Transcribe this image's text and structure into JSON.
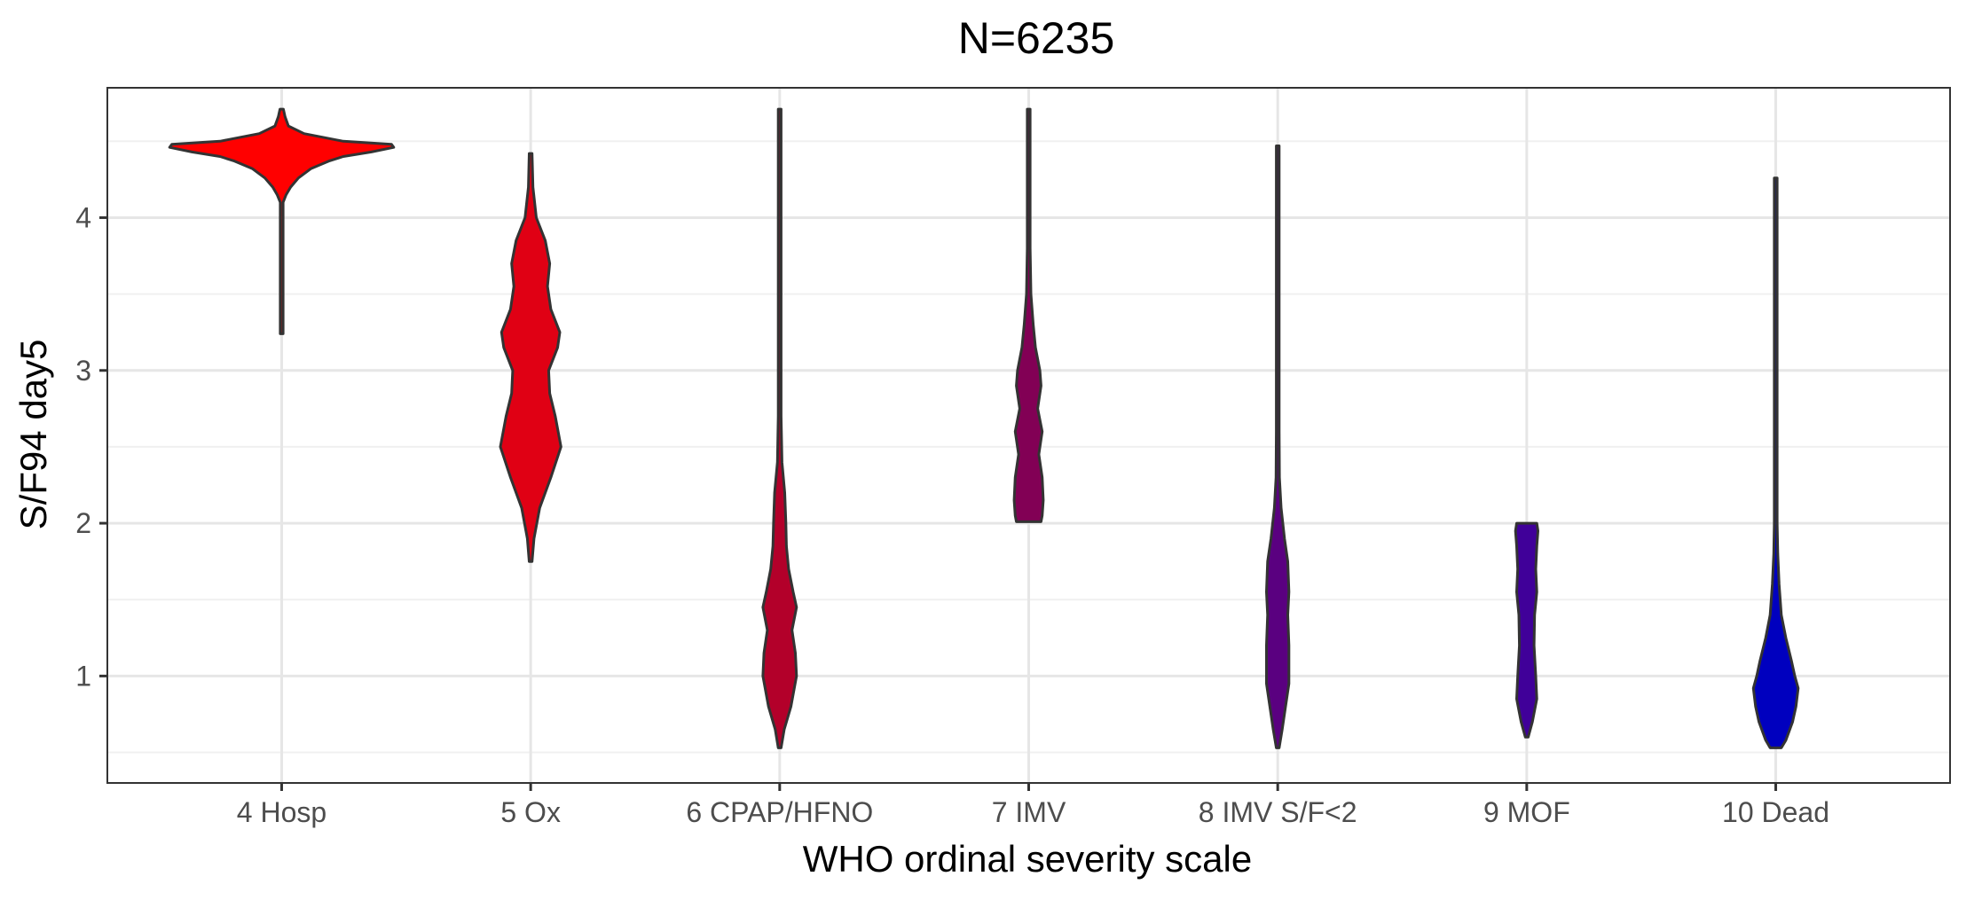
{
  "chart_data": {
    "type": "violin",
    "title": "N=6235",
    "xlabel": "WHO ordinal severity scale",
    "ylabel": "S/F94 day5",
    "ylim": [
      0.3,
      4.85
    ],
    "y_ticks": [
      1,
      2,
      3,
      4
    ],
    "y_tick_labels": [
      "1",
      "2",
      "3",
      "4"
    ],
    "categories": [
      "4 Hosp",
      "5 Ox",
      "6 CPAP/HFNO",
      "7 IMV",
      "8 IMV S/F<2",
      "9 MOF",
      "10 Dead"
    ],
    "grid": true,
    "legend": "none",
    "colors": [
      "#ff0000",
      "#e00014",
      "#b3002a",
      "#820055",
      "#5a0080",
      "#400099",
      "#0000bf"
    ],
    "series": [
      {
        "profile": [
          [
            3.24,
            0.002
          ],
          [
            3.5,
            0.005
          ],
          [
            3.8,
            0.01
          ],
          [
            3.9,
            0.006
          ],
          [
            4.0,
            0.008
          ],
          [
            4.06,
            0.012
          ],
          [
            4.1,
            0.01
          ],
          [
            4.15,
            0.04
          ],
          [
            4.2,
            0.08
          ],
          [
            4.26,
            0.15
          ],
          [
            4.32,
            0.26
          ],
          [
            4.37,
            0.42
          ],
          [
            4.4,
            0.55
          ],
          [
            4.43,
            0.8
          ],
          [
            4.46,
            1.0
          ],
          [
            4.48,
            0.98
          ],
          [
            4.5,
            0.55
          ],
          [
            4.55,
            0.2
          ],
          [
            4.6,
            0.06
          ],
          [
            4.66,
            0.03
          ],
          [
            4.71,
            0.015
          ]
        ]
      },
      {
        "profile": [
          [
            1.75,
            0.01
          ],
          [
            1.9,
            0.03
          ],
          [
            2.1,
            0.08
          ],
          [
            2.3,
            0.18
          ],
          [
            2.5,
            0.27
          ],
          [
            2.7,
            0.22
          ],
          [
            2.85,
            0.17
          ],
          [
            3.0,
            0.16
          ],
          [
            3.15,
            0.24
          ],
          [
            3.25,
            0.26
          ],
          [
            3.4,
            0.18
          ],
          [
            3.55,
            0.15
          ],
          [
            3.7,
            0.17
          ],
          [
            3.85,
            0.13
          ],
          [
            4.0,
            0.05
          ],
          [
            4.2,
            0.02
          ],
          [
            4.42,
            0.01
          ]
        ]
      },
      {
        "profile": [
          [
            0.53,
            0.01
          ],
          [
            0.65,
            0.04
          ],
          [
            0.8,
            0.1
          ],
          [
            1.0,
            0.15
          ],
          [
            1.15,
            0.14
          ],
          [
            1.3,
            0.11
          ],
          [
            1.45,
            0.15
          ],
          [
            1.55,
            0.12
          ],
          [
            1.7,
            0.08
          ],
          [
            1.85,
            0.06
          ],
          [
            2.0,
            0.055
          ],
          [
            2.2,
            0.045
          ],
          [
            2.4,
            0.02
          ],
          [
            2.7,
            0.01
          ],
          [
            3.0,
            0.007
          ],
          [
            3.5,
            0.005
          ],
          [
            4.0,
            0.005
          ],
          [
            4.71,
            0.003
          ]
        ]
      },
      {
        "profile": [
          [
            2.01,
            0.11
          ],
          [
            2.05,
            0.12
          ],
          [
            2.15,
            0.13
          ],
          [
            2.3,
            0.12
          ],
          [
            2.45,
            0.09
          ],
          [
            2.6,
            0.12
          ],
          [
            2.75,
            0.08
          ],
          [
            2.9,
            0.11
          ],
          [
            3.0,
            0.1
          ],
          [
            3.15,
            0.06
          ],
          [
            3.3,
            0.04
          ],
          [
            3.5,
            0.02
          ],
          [
            3.8,
            0.012
          ],
          [
            4.1,
            0.008
          ],
          [
            4.4,
            0.006
          ],
          [
            4.71,
            0.004
          ]
        ]
      },
      {
        "profile": [
          [
            0.53,
            0.01
          ],
          [
            0.65,
            0.04
          ],
          [
            0.8,
            0.07
          ],
          [
            0.95,
            0.1
          ],
          [
            1.2,
            0.1
          ],
          [
            1.4,
            0.09
          ],
          [
            1.55,
            0.1
          ],
          [
            1.75,
            0.09
          ],
          [
            1.9,
            0.06
          ],
          [
            2.1,
            0.03
          ],
          [
            2.3,
            0.015
          ],
          [
            2.6,
            0.008
          ],
          [
            3.0,
            0.006
          ],
          [
            3.5,
            0.005
          ],
          [
            4.0,
            0.004
          ],
          [
            4.47,
            0.003
          ]
        ]
      },
      {
        "profile": [
          [
            0.6,
            0.01
          ],
          [
            0.7,
            0.05
          ],
          [
            0.85,
            0.09
          ],
          [
            1.0,
            0.08
          ],
          [
            1.2,
            0.065
          ],
          [
            1.4,
            0.07
          ],
          [
            1.55,
            0.09
          ],
          [
            1.7,
            0.08
          ],
          [
            1.85,
            0.09
          ],
          [
            1.95,
            0.1
          ],
          [
            2.0,
            0.09
          ]
        ]
      },
      {
        "profile": [
          [
            0.53,
            0.05
          ],
          [
            0.58,
            0.09
          ],
          [
            0.7,
            0.15
          ],
          [
            0.8,
            0.18
          ],
          [
            0.92,
            0.2
          ],
          [
            1.0,
            0.17
          ],
          [
            1.1,
            0.14
          ],
          [
            1.25,
            0.09
          ],
          [
            1.4,
            0.05
          ],
          [
            1.6,
            0.03
          ],
          [
            1.8,
            0.018
          ],
          [
            2.0,
            0.012
          ],
          [
            2.3,
            0.008
          ],
          [
            2.6,
            0.006
          ],
          [
            3.0,
            0.004
          ],
          [
            3.5,
            0.004
          ],
          [
            4.0,
            0.003
          ],
          [
            4.26,
            0.003
          ]
        ]
      }
    ]
  }
}
